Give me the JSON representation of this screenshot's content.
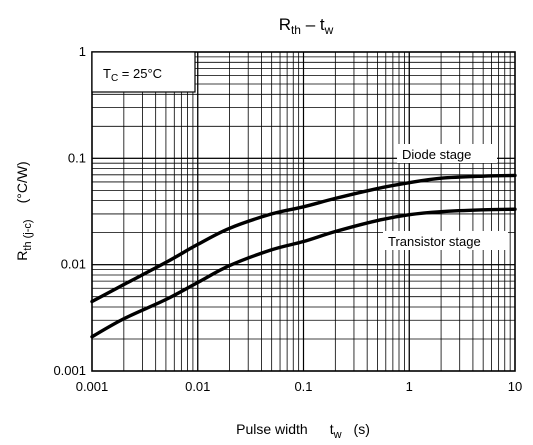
{
  "chart_data": {
    "type": "line",
    "title": {
      "main": "R",
      "main_sub": "th",
      "sep": " – ",
      "var": "t",
      "var_sub": "w"
    },
    "xlabel": {
      "text": "Pulse width",
      "var": "t",
      "var_sub": "w",
      "unit": "(s)"
    },
    "ylabel": {
      "main": "R",
      "main_sub": "th (j-c)",
      "unit": "(°C/W)"
    },
    "x_scale": "log",
    "y_scale": "log",
    "xlim": [
      0.001,
      10
    ],
    "ylim": [
      0.001,
      1
    ],
    "x_ticks": [
      "0.001",
      "0.01",
      "0.1",
      "1",
      "10"
    ],
    "y_ticks": [
      "0.001",
      "0.01",
      "0.1",
      "1"
    ],
    "grid": true,
    "condition": {
      "main": "T",
      "sub": "C",
      "rest": " = 25°C"
    },
    "series": [
      {
        "name": "Diode stage",
        "x": [
          0.001,
          0.002,
          0.005,
          0.01,
          0.02,
          0.05,
          0.1,
          0.2,
          0.5,
          1,
          2,
          5,
          10
        ],
        "y": [
          0.0045,
          0.0065,
          0.0105,
          0.0155,
          0.022,
          0.03,
          0.035,
          0.042,
          0.052,
          0.059,
          0.065,
          0.068,
          0.069
        ]
      },
      {
        "name": "Transistor stage",
        "x": [
          0.001,
          0.002,
          0.005,
          0.01,
          0.02,
          0.05,
          0.1,
          0.2,
          0.5,
          1,
          2,
          5,
          10
        ],
        "y": [
          0.0021,
          0.0031,
          0.0047,
          0.0068,
          0.0098,
          0.0138,
          0.0165,
          0.0205,
          0.026,
          0.0295,
          0.0315,
          0.0328,
          0.0332
        ]
      }
    ]
  }
}
